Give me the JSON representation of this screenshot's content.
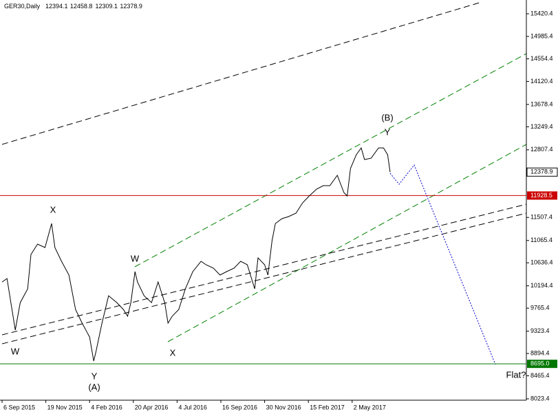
{
  "chart_data": {
    "type": "line",
    "symbol": "GER30,Daily",
    "ohlc": [
      12394.1,
      12458.8,
      12309.1,
      12378.9
    ],
    "x": [
      0,
      6,
      12,
      16,
      22,
      31,
      35,
      43,
      52,
      60,
      64,
      72,
      81,
      89,
      97,
      106,
      111,
      114,
      121,
      129,
      139,
      147,
      152,
      156,
      161,
      164,
      172,
      181,
      189,
      197,
      201,
      206,
      214,
      222,
      231,
      241,
      247,
      256,
      264,
      272,
      281,
      289,
      297,
      306,
      310,
      318,
      322,
      327,
      331,
      339,
      347,
      356,
      364,
      372,
      381,
      389,
      397,
      406,
      414,
      418,
      422,
      429,
      435,
      439,
      447,
      456,
      462,
      467,
      470
    ],
    "values": [
      10268,
      10334,
      9740,
      9343,
      9872,
      10136,
      10797,
      10995,
      10929,
      11391,
      10929,
      10665,
      10401,
      9740,
      9476,
      9211,
      8749,
      8948,
      9476,
      10004,
      9872,
      9740,
      9608,
      9872,
      10467,
      10268,
      10004,
      9872,
      10268,
      9872,
      9476,
      9608,
      9740,
      10136,
      10467,
      10665,
      10599,
      10533,
      10401,
      10467,
      10533,
      10665,
      10599,
      10136,
      10731,
      10599,
      10401,
      11061,
      11391,
      11484,
      11524,
      11590,
      11788,
      11920,
      12052,
      12118,
      12118,
      12316,
      11986,
      11920,
      12448,
      12712,
      12844,
      12620,
      12646,
      12844,
      12844,
      12712,
      12378.9
    ],
    "color": "#000000",
    "xlim": [
      0,
      635
    ],
    "xticks": [
      {
        "value": 0,
        "label": "6 Sep 2015"
      },
      {
        "value": 53,
        "label": "19 Nov 2015"
      },
      {
        "value": 106,
        "label": "4 Feb 2016"
      },
      {
        "value": 159,
        "label": "20 Apr 2016"
      },
      {
        "value": 212,
        "label": "4 Jul 2016"
      },
      {
        "value": 265,
        "label": "16 Sep 2016"
      },
      {
        "value": 318,
        "label": "30 Nov 2016"
      },
      {
        "value": 371,
        "label": "15 Feb 2017"
      },
      {
        "value": 424,
        "label": "2 May 2017"
      }
    ],
    "ylim": [
      7997,
      15685
    ],
    "yticks": [
      15420.4,
      14985.4,
      14554.4,
      14120.4,
      13678.4,
      13249.4,
      12807.4,
      11507.4,
      11065.4,
      10636.4,
      10194.4,
      9765.4,
      9323.4,
      8894.4,
      8465.4,
      8023.4
    ],
    "current_price": 12378.9,
    "levels": [
      {
        "value": 11928.5,
        "color": "#cc0000"
      },
      {
        "value": 8695,
        "label": "8695.0",
        "color": "#007700"
      }
    ],
    "annotations": [
      "X",
      "W",
      "Y",
      "(A)",
      "W",
      "X",
      "(B)",
      "Y",
      "Flat?"
    ]
  }
}
